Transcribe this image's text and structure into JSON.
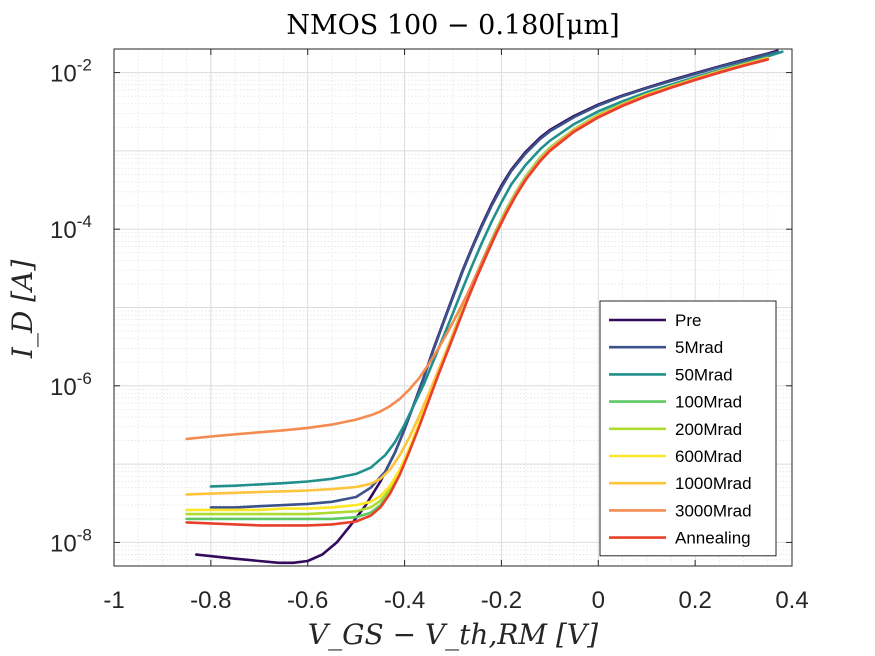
{
  "chart_data": {
    "type": "line",
    "title": "NMOS 100 − 0.180[μm]",
    "xlabel": "V_GS − V_th,RM [V]",
    "ylabel": "I_D [A]",
    "xlim": [
      -1,
      0.4
    ],
    "ylim": [
      5e-09,
      0.02
    ],
    "yscale": "log",
    "grid": true,
    "minor_grid": true,
    "legend_position": "bottom-right",
    "x_ticks": [
      -1,
      -0.8,
      -0.6,
      -0.4,
      -0.2,
      0,
      0.2,
      0.4
    ],
    "x_tick_labels": [
      "-1",
      "-0.8",
      "-0.6",
      "-0.4",
      "-0.2",
      "0",
      "0.2",
      "0.4"
    ],
    "y_ticks": [
      {
        "value": 1e-08,
        "base": "10",
        "exp": "-8"
      },
      {
        "value": 1e-06,
        "base": "10",
        "exp": "-6"
      },
      {
        "value": 0.0001,
        "base": "10",
        "exp": "-4"
      },
      {
        "value": 0.01,
        "base": "10",
        "exp": "-2"
      }
    ],
    "series": [
      {
        "name": "Pre",
        "color": "#330a5c",
        "x": [
          -0.83,
          -0.75,
          -0.7,
          -0.66,
          -0.63,
          -0.6,
          -0.57,
          -0.54,
          -0.51,
          -0.48,
          -0.45,
          -0.42,
          -0.4,
          -0.38,
          -0.36,
          -0.34,
          -0.32,
          -0.3,
          -0.28,
          -0.26,
          -0.24,
          -0.22,
          -0.2,
          -0.18,
          -0.15,
          -0.12,
          -0.1,
          -0.05,
          0,
          0.05,
          0.1,
          0.15,
          0.2,
          0.25,
          0.3,
          0.35,
          0.37
        ],
        "y": [
          7e-09,
          6.2e-09,
          5.8e-09,
          5.5e-09,
          5.5e-09,
          5.8e-09,
          7e-09,
          1e-08,
          1.7e-08,
          3e-08,
          6e-08,
          1.4e-07,
          2.8e-07,
          6e-07,
          1.3e-06,
          3e-06,
          6.5e-06,
          1.4e-05,
          3e-05,
          6e-05,
          0.000115,
          0.00021,
          0.00036,
          0.00057,
          0.00097,
          0.00148,
          0.00185,
          0.0028,
          0.0039,
          0.0051,
          0.0064,
          0.008,
          0.0098,
          0.012,
          0.0145,
          0.0175,
          0.019
        ]
      },
      {
        "name": "5Mrad",
        "color": "#3b528b",
        "x": [
          -0.8,
          -0.75,
          -0.7,
          -0.65,
          -0.6,
          -0.55,
          -0.5,
          -0.47,
          -0.44,
          -0.42,
          -0.4,
          -0.38,
          -0.36,
          -0.34,
          -0.32,
          -0.3,
          -0.28,
          -0.26,
          -0.24,
          -0.22,
          -0.2,
          -0.18,
          -0.15,
          -0.12,
          -0.1,
          -0.05,
          0,
          0.05,
          0.1,
          0.15,
          0.2,
          0.25,
          0.3,
          0.35,
          0.37
        ],
        "y": [
          2.8e-08,
          2.8e-08,
          2.9e-08,
          3e-08,
          3.1e-08,
          3.3e-08,
          3.8e-08,
          5e-08,
          8e-08,
          1.4e-07,
          2.8e-07,
          6e-07,
          1.3e-06,
          2.9e-06,
          6.3e-06,
          1.35e-05,
          2.9e-05,
          5.8e-05,
          0.00011,
          0.0002,
          0.00034,
          0.00055,
          0.00093,
          0.00142,
          0.00178,
          0.0027,
          0.0038,
          0.005,
          0.0063,
          0.0078,
          0.0096,
          0.0118,
          0.0142,
          0.0172,
          0.0185
        ]
      },
      {
        "name": "50Mrad",
        "color": "#21908d",
        "x": [
          -0.8,
          -0.75,
          -0.7,
          -0.65,
          -0.6,
          -0.55,
          -0.5,
          -0.47,
          -0.44,
          -0.42,
          -0.4,
          -0.38,
          -0.36,
          -0.34,
          -0.32,
          -0.3,
          -0.28,
          -0.26,
          -0.24,
          -0.22,
          -0.2,
          -0.18,
          -0.15,
          -0.12,
          -0.1,
          -0.05,
          0,
          0.05,
          0.1,
          0.15,
          0.2,
          0.25,
          0.3,
          0.35,
          0.38
        ],
        "y": [
          5.2e-08,
          5.3e-08,
          5.5e-08,
          5.7e-08,
          6e-08,
          6.5e-08,
          7.5e-08,
          9e-08,
          1.3e-07,
          1.9e-07,
          3.2e-07,
          5.8e-07,
          1.05e-06,
          2.1e-06,
          4.2e-06,
          8.5e-06,
          1.75e-05,
          3.5e-05,
          6.8e-05,
          0.000125,
          0.00022,
          0.00037,
          0.00066,
          0.00105,
          0.00135,
          0.0022,
          0.0032,
          0.0043,
          0.0056,
          0.007,
          0.0087,
          0.0108,
          0.0132,
          0.0162,
          0.0185
        ]
      },
      {
        "name": "100Mrad",
        "color": "#5ec962",
        "x": [
          -0.85,
          -0.8,
          -0.75,
          -0.7,
          -0.65,
          -0.6,
          -0.55,
          -0.5,
          -0.47,
          -0.45,
          -0.43,
          -0.41,
          -0.39,
          -0.37,
          -0.35,
          -0.33,
          -0.31,
          -0.29,
          -0.27,
          -0.25,
          -0.23,
          -0.21,
          -0.19,
          -0.17,
          -0.15,
          -0.12,
          -0.1,
          -0.05,
          0,
          0.05,
          0.1,
          0.15,
          0.2,
          0.25,
          0.3,
          0.35
        ],
        "y": [
          2e-08,
          2e-08,
          2e-08,
          2e-08,
          2e-08,
          2e-08,
          2e-08,
          2.1e-08,
          2.4e-08,
          3e-08,
          4.3e-08,
          7.5e-08,
          1.5e-07,
          3.2e-07,
          7e-07,
          1.5e-06,
          3.2e-06,
          6.7e-06,
          1.4e-05,
          2.8e-05,
          5.4e-05,
          0.0001,
          0.00018,
          0.0003,
          0.00047,
          0.00082,
          0.0011,
          0.0019,
          0.0029,
          0.004,
          0.0053,
          0.0067,
          0.0084,
          0.0105,
          0.0128,
          0.0155
        ]
      },
      {
        "name": "200Mrad",
        "color": "#addc30",
        "x": [
          -0.85,
          -0.8,
          -0.75,
          -0.7,
          -0.65,
          -0.6,
          -0.55,
          -0.5,
          -0.47,
          -0.45,
          -0.43,
          -0.41,
          -0.39,
          -0.37,
          -0.35,
          -0.33,
          -0.31,
          -0.29,
          -0.27,
          -0.25,
          -0.23,
          -0.21,
          -0.19,
          -0.17,
          -0.15,
          -0.12,
          -0.1,
          -0.05,
          0,
          0.05,
          0.1,
          0.15,
          0.2,
          0.25,
          0.3,
          0.35
        ],
        "y": [
          2.3e-08,
          2.3e-08,
          2.3e-08,
          2.3e-08,
          2.3e-08,
          2.3e-08,
          2.4e-08,
          2.5e-08,
          2.8e-08,
          3.4e-08,
          4.8e-08,
          8e-08,
          1.55e-07,
          3.3e-07,
          7e-07,
          1.5e-06,
          3.2e-06,
          6.6e-06,
          1.38e-05,
          2.75e-05,
          5.3e-05,
          9.8e-05,
          0.000175,
          0.000295,
          0.00046,
          0.0008,
          0.00108,
          0.00188,
          0.00285,
          0.00395,
          0.00525,
          0.00665,
          0.00835,
          0.0104,
          0.0127,
          0.0154
        ]
      },
      {
        "name": "600Mrad",
        "color": "#fde725",
        "x": [
          -0.85,
          -0.8,
          -0.75,
          -0.7,
          -0.65,
          -0.6,
          -0.55,
          -0.5,
          -0.47,
          -0.45,
          -0.43,
          -0.41,
          -0.39,
          -0.37,
          -0.35,
          -0.33,
          -0.31,
          -0.29,
          -0.27,
          -0.25,
          -0.23,
          -0.21,
          -0.19,
          -0.17,
          -0.15,
          -0.12,
          -0.1,
          -0.05,
          0,
          0.05,
          0.1,
          0.15,
          0.2,
          0.25,
          0.3,
          0.35
        ],
        "y": [
          2.6e-08,
          2.6e-08,
          2.6e-08,
          2.6e-08,
          2.7e-08,
          2.7e-08,
          2.8e-08,
          3e-08,
          3.3e-08,
          3.9e-08,
          5.3e-08,
          8.5e-08,
          1.6e-07,
          3.3e-07,
          7e-07,
          1.48e-06,
          3.1e-06,
          6.4e-06,
          1.33e-05,
          2.65e-05,
          5.1e-05,
          9.5e-05,
          0.00017,
          0.00029,
          0.00045,
          0.00078,
          0.00106,
          0.00185,
          0.0028,
          0.0039,
          0.0052,
          0.0066,
          0.0083,
          0.0103,
          0.0126,
          0.0152
        ]
      },
      {
        "name": "1000Mrad",
        "color": "#fdc43c",
        "x": [
          -0.85,
          -0.8,
          -0.75,
          -0.7,
          -0.65,
          -0.6,
          -0.55,
          -0.5,
          -0.47,
          -0.45,
          -0.43,
          -0.41,
          -0.39,
          -0.37,
          -0.35,
          -0.33,
          -0.31,
          -0.29,
          -0.27,
          -0.25,
          -0.23,
          -0.21,
          -0.19,
          -0.17,
          -0.15,
          -0.12,
          -0.1,
          -0.05,
          0,
          0.05,
          0.1,
          0.15,
          0.2,
          0.25,
          0.3,
          0.35
        ],
        "y": [
          4.1e-08,
          4.2e-08,
          4.3e-08,
          4.4e-08,
          4.5e-08,
          4.6e-08,
          4.8e-08,
          5.1e-08,
          5.6e-08,
          6.5e-08,
          8.5e-08,
          1.3e-07,
          2.2e-07,
          4.1e-07,
          8e-07,
          1.6e-06,
          3.2e-06,
          6.5e-06,
          1.33e-05,
          2.65e-05,
          5.1e-05,
          9.4e-05,
          0.000168,
          0.000285,
          0.000445,
          0.00077,
          0.00105,
          0.00183,
          0.00278,
          0.00388,
          0.00515,
          0.00655,
          0.00825,
          0.0102,
          0.0125,
          0.0151
        ]
      },
      {
        "name": "3000Mrad",
        "color": "#f48c52",
        "x": [
          -0.85,
          -0.8,
          -0.75,
          -0.7,
          -0.65,
          -0.6,
          -0.55,
          -0.5,
          -0.47,
          -0.45,
          -0.43,
          -0.41,
          -0.39,
          -0.37,
          -0.35,
          -0.33,
          -0.31,
          -0.29,
          -0.27,
          -0.25,
          -0.23,
          -0.21,
          -0.19,
          -0.17,
          -0.15,
          -0.12,
          -0.1,
          -0.05,
          0,
          0.05,
          0.1,
          0.15,
          0.2,
          0.25,
          0.3,
          0.35
        ],
        "y": [
          2.1e-07,
          2.25e-07,
          2.4e-07,
          2.55e-07,
          2.7e-07,
          2.9e-07,
          3.2e-07,
          3.7e-07,
          4.2e-07,
          4.7e-07,
          5.5e-07,
          6.8e-07,
          9e-07,
          1.25e-06,
          1.9e-06,
          3e-06,
          5e-06,
          8.5e-06,
          1.5e-05,
          2.8e-05,
          5.2e-05,
          9.5e-05,
          0.000168,
          0.000285,
          0.000445,
          0.00077,
          0.00104,
          0.00182,
          0.00275,
          0.00385,
          0.0051,
          0.0065,
          0.0082,
          0.0102,
          0.0124,
          0.015
        ]
      },
      {
        "name": "Annealing",
        "color": "#e8402a",
        "x": [
          -0.85,
          -0.8,
          -0.75,
          -0.7,
          -0.65,
          -0.6,
          -0.55,
          -0.5,
          -0.47,
          -0.45,
          -0.43,
          -0.41,
          -0.39,
          -0.37,
          -0.35,
          -0.33,
          -0.31,
          -0.29,
          -0.27,
          -0.25,
          -0.23,
          -0.21,
          -0.19,
          -0.17,
          -0.15,
          -0.12,
          -0.1,
          -0.05,
          0,
          0.05,
          0.1,
          0.15,
          0.2,
          0.25,
          0.3,
          0.35
        ],
        "y": [
          1.8e-08,
          1.75e-08,
          1.7e-08,
          1.65e-08,
          1.65e-08,
          1.65e-08,
          1.7e-08,
          1.85e-08,
          2.2e-08,
          2.8e-08,
          4.2e-08,
          7.3e-08,
          1.45e-07,
          3e-07,
          6.5e-07,
          1.4e-06,
          2.9e-06,
          6e-06,
          1.25e-05,
          2.5e-05,
          4.8e-05,
          9e-05,
          0.00016,
          0.00027,
          0.000425,
          0.00074,
          0.001,
          0.00176,
          0.00268,
          0.00375,
          0.005,
          0.0064,
          0.00805,
          0.01,
          0.0122,
          0.0147
        ]
      }
    ]
  }
}
